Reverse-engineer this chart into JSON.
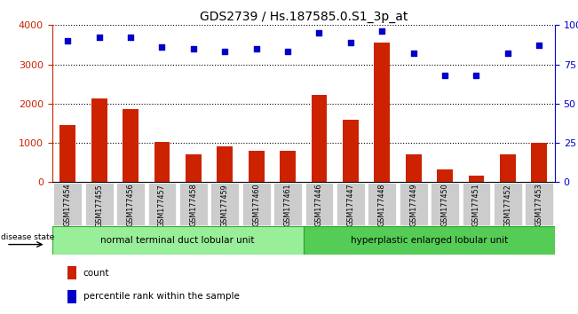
{
  "title": "GDS2739 / Hs.187585.0.S1_3p_at",
  "samples": [
    "GSM177454",
    "GSM177455",
    "GSM177456",
    "GSM177457",
    "GSM177458",
    "GSM177459",
    "GSM177460",
    "GSM177461",
    "GSM177446",
    "GSM177447",
    "GSM177448",
    "GSM177449",
    "GSM177450",
    "GSM177451",
    "GSM177452",
    "GSM177453"
  ],
  "bar_counts": [
    1450,
    2130,
    1870,
    1020,
    700,
    920,
    800,
    800,
    2220,
    1600,
    3560,
    700,
    320,
    170,
    700,
    1000
  ],
  "percentiles": [
    90,
    92,
    92,
    86,
    85,
    83,
    85,
    83,
    95,
    89,
    96,
    82,
    68,
    68,
    82,
    87
  ],
  "group1_label": "normal terminal duct lobular unit",
  "group2_label": "hyperplastic enlarged lobular unit",
  "disease_state_label": "disease state",
  "bar_color": "#cc2200",
  "scatter_color": "#0000cc",
  "group1_bg": "#99ee99",
  "group2_bg": "#55cc55",
  "tick_bg": "#cccccc",
  "legend_count_label": "count",
  "legend_pct_label": "percentile rank within the sample"
}
